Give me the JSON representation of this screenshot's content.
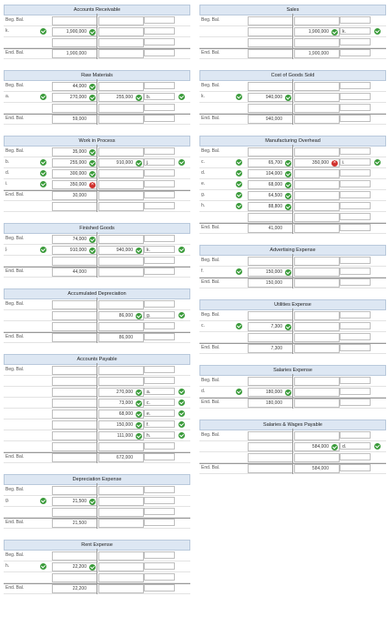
{
  "left": [
    {
      "title": "Accounts Receivable",
      "rows": [
        {
          "lbl": "Beg. Bal.",
          "dchk": false,
          "d": "",
          "c": "",
          "cl": "",
          "cchk": false
        },
        {
          "lbl": "k.",
          "dchk": true,
          "d": "1,900,000",
          "dmk": "ok",
          "c": "",
          "cl": "",
          "cchk": false
        },
        {
          "lbl": "",
          "dchk": false,
          "d": "",
          "c": "",
          "cl": "",
          "cchk": false
        },
        {
          "lbl": "End. Bal.",
          "dchk": false,
          "d": "1,900,000",
          "c": "",
          "cl": "",
          "cchk": false,
          "end": true
        }
      ]
    },
    {
      "title": "Raw Materials",
      "rows": [
        {
          "lbl": "Beg. Bal.",
          "dchk": false,
          "d": "44,000",
          "dmk": "ok",
          "c": "",
          "cl": "",
          "cchk": false
        },
        {
          "lbl": "a.",
          "dchk": true,
          "d": "270,000",
          "dmk": "ok",
          "c": "255,000",
          "cmk": "ok",
          "cl": "b.",
          "cchk": true
        },
        {
          "lbl": "",
          "dchk": false,
          "d": "",
          "c": "",
          "cl": "",
          "cchk": false
        },
        {
          "lbl": "End. Bal.",
          "dchk": false,
          "d": "59,000",
          "c": "",
          "cl": "",
          "cchk": false,
          "end": true
        }
      ]
    },
    {
      "title": "Work in Process",
      "rows": [
        {
          "lbl": "Beg. Bal.",
          "dchk": false,
          "d": "35,000",
          "dmk": "ok",
          "c": "",
          "cl": "",
          "cchk": false
        },
        {
          "lbl": "b.",
          "dchk": true,
          "d": "255,000",
          "dmk": "ok",
          "c": "910,000",
          "cmk": "ok",
          "cl": "j.",
          "cchk": true
        },
        {
          "lbl": "d.",
          "dchk": true,
          "d": "300,000",
          "dmk": "ok",
          "c": "",
          "cl": "",
          "cchk": false
        },
        {
          "lbl": "i.",
          "dchk": true,
          "d": "350,000",
          "dmk": "x",
          "c": "",
          "cl": "",
          "cchk": false
        },
        {
          "lbl": "End. Bal.",
          "dchk": false,
          "d": "30,000",
          "c": "",
          "cl": "",
          "cchk": false,
          "end": true
        },
        {
          "lbl": "",
          "dchk": false,
          "d": "",
          "c": "",
          "cl": "",
          "cchk": false
        }
      ]
    },
    {
      "title": "Finished Goods",
      "rows": [
        {
          "lbl": "Beg. Bal.",
          "dchk": false,
          "d": "74,000",
          "dmk": "ok",
          "c": "",
          "cl": "",
          "cchk": false
        },
        {
          "lbl": "j.",
          "dchk": true,
          "d": "910,000",
          "dmk": "ok",
          "c": "940,000",
          "cmk": "ok",
          "cl": "k.",
          "cchk": true
        },
        {
          "lbl": "",
          "dchk": false,
          "d": "",
          "c": "",
          "cl": "",
          "cchk": false
        },
        {
          "lbl": "End. Bal.",
          "dchk": false,
          "d": "44,000",
          "c": "",
          "cl": "",
          "cchk": false,
          "end": true
        }
      ]
    },
    {
      "title": "Accumulated Depreciation",
      "rows": [
        {
          "lbl": "Beg. Bal.",
          "dchk": false,
          "d": "",
          "c": "",
          "cl": "",
          "cchk": false
        },
        {
          "lbl": "",
          "dchk": false,
          "d": "",
          "c": "86,000",
          "cmk": "ok",
          "cl": "g.",
          "cchk": true
        },
        {
          "lbl": "",
          "dchk": false,
          "d": "",
          "c": "",
          "cl": "",
          "cchk": false
        },
        {
          "lbl": "End. Bal.",
          "dchk": false,
          "d": "",
          "c": "86,000",
          "cl": "",
          "cchk": false,
          "end": true
        }
      ]
    },
    {
      "title": "Accounts Payable",
      "rows": [
        {
          "lbl": "Beg. Bal.",
          "dchk": false,
          "d": "",
          "c": "",
          "cl": "",
          "cchk": false
        },
        {
          "lbl": "",
          "dchk": false,
          "d": "",
          "c": "",
          "cl": "",
          "cchk": false
        },
        {
          "lbl": "",
          "dchk": false,
          "d": "",
          "c": "270,000",
          "cmk": "ok",
          "cl": "a.",
          "cchk": true
        },
        {
          "lbl": "",
          "dchk": false,
          "d": "",
          "c": "73,000",
          "cmk": "ok",
          "cl": "c.",
          "cchk": true
        },
        {
          "lbl": "",
          "dchk": false,
          "d": "",
          "c": "68,000",
          "cmk": "ok",
          "cl": "e.",
          "cchk": true
        },
        {
          "lbl": "",
          "dchk": false,
          "d": "",
          "c": "150,000",
          "cmk": "ok",
          "cl": "f.",
          "cchk": true
        },
        {
          "lbl": "",
          "dchk": false,
          "d": "",
          "c": "111,000",
          "cmk": "ok",
          "cl": "h.",
          "cchk": true
        },
        {
          "lbl": "",
          "dchk": false,
          "d": "",
          "c": "",
          "cl": "",
          "cchk": false
        },
        {
          "lbl": "End. Bal.",
          "dchk": false,
          "d": "",
          "c": "672,000",
          "cl": "",
          "cchk": false,
          "end": true
        }
      ]
    },
    {
      "title": "Depreciation Expense",
      "rows": [
        {
          "lbl": "Beg. Bal.",
          "dchk": false,
          "d": "",
          "c": "",
          "cl": "",
          "cchk": false
        },
        {
          "lbl": "g.",
          "dchk": true,
          "d": "21,500",
          "dmk": "ok",
          "c": "",
          "cl": "",
          "cchk": false
        },
        {
          "lbl": "",
          "dchk": false,
          "d": "",
          "c": "",
          "cl": "",
          "cchk": false
        },
        {
          "lbl": "End. Bal.",
          "dchk": false,
          "d": "21,500",
          "c": "",
          "cl": "",
          "cchk": false,
          "end": true
        }
      ]
    },
    {
      "title": "Rent Expense",
      "rows": [
        {
          "lbl": "Beg. Bal.",
          "dchk": false,
          "d": "",
          "c": "",
          "cl": "",
          "cchk": false
        },
        {
          "lbl": "h.",
          "dchk": true,
          "d": "22,200",
          "dmk": "ok",
          "c": "",
          "cl": "",
          "cchk": false
        },
        {
          "lbl": "",
          "dchk": false,
          "d": "",
          "c": "",
          "cl": "",
          "cchk": false
        },
        {
          "lbl": "End. Bal.",
          "dchk": false,
          "d": "22,200",
          "c": "",
          "cl": "",
          "cchk": false,
          "end": true
        }
      ]
    }
  ],
  "right": [
    {
      "title": "Sales",
      "rows": [
        {
          "lbl": "Beg. Bal.",
          "dchk": false,
          "d": "",
          "c": "",
          "cl": "",
          "cchk": false
        },
        {
          "lbl": "",
          "dchk": false,
          "d": "",
          "c": "1,900,000",
          "cmk": "ok",
          "cl": "k.",
          "cchk": true
        },
        {
          "lbl": "",
          "dchk": false,
          "d": "",
          "c": "",
          "cl": "",
          "cchk": false
        },
        {
          "lbl": "End. Bal.",
          "dchk": false,
          "d": "",
          "c": "1,900,000",
          "cl": "",
          "cchk": false,
          "end": true
        }
      ]
    },
    {
      "title": "Cost of Goods Sold",
      "rows": [
        {
          "lbl": "Beg. Bal.",
          "dchk": false,
          "d": "",
          "c": "",
          "cl": "",
          "cchk": false
        },
        {
          "lbl": "k.",
          "dchk": true,
          "d": "940,000",
          "dmk": "ok",
          "c": "",
          "cl": "",
          "cchk": false
        },
        {
          "lbl": "",
          "dchk": false,
          "d": "",
          "c": "",
          "cl": "",
          "cchk": false
        },
        {
          "lbl": "End. Bal.",
          "dchk": false,
          "d": "940,000",
          "c": "",
          "cl": "",
          "cchk": false,
          "end": true
        }
      ]
    },
    {
      "title": "Manufacturing Overhead",
      "rows": [
        {
          "lbl": "Beg. Bal.",
          "dchk": false,
          "d": "",
          "c": "",
          "cl": "",
          "cchk": false
        },
        {
          "lbl": "c.",
          "dchk": true,
          "d": "65,700",
          "dmk": "ok",
          "c": "350,000",
          "cmk": "x",
          "cl": "i.",
          "cchk": true
        },
        {
          "lbl": "d.",
          "dchk": true,
          "d": "104,000",
          "dmk": "ok",
          "c": "",
          "cl": "",
          "cchk": false
        },
        {
          "lbl": "e.",
          "dchk": true,
          "d": "68,000",
          "dmk": "ok",
          "c": "",
          "cl": "",
          "cchk": false
        },
        {
          "lbl": "g.",
          "dchk": true,
          "d": "64,500",
          "dmk": "ok",
          "c": "",
          "cl": "",
          "cchk": false
        },
        {
          "lbl": "h.",
          "dchk": true,
          "d": "88,800",
          "dmk": "ok",
          "c": "",
          "cl": "",
          "cchk": false
        },
        {
          "lbl": "",
          "dchk": false,
          "d": "",
          "c": "",
          "cl": "",
          "cchk": false
        },
        {
          "lbl": "End. Bal.",
          "dchk": false,
          "d": "41,000",
          "c": "",
          "cl": "",
          "cchk": false,
          "end": true
        }
      ]
    },
    {
      "title": "Advertising Expense",
      "rows": [
        {
          "lbl": "Beg. Bal.",
          "dchk": false,
          "d": "",
          "c": "",
          "cl": "",
          "cchk": false
        },
        {
          "lbl": "f.",
          "dchk": true,
          "d": "150,000",
          "dmk": "ok",
          "c": "",
          "cl": "",
          "cchk": false
        },
        {
          "lbl": "End. Bal.",
          "dchk": false,
          "d": "150,000",
          "c": "",
          "cl": "",
          "cchk": false,
          "end": true
        }
      ]
    },
    {
      "title": "Utilities Expense",
      "rows": [
        {
          "lbl": "Beg. Bal.",
          "dchk": false,
          "d": "",
          "c": "",
          "cl": "",
          "cchk": false
        },
        {
          "lbl": "c.",
          "dchk": true,
          "d": "7,300",
          "dmk": "ok",
          "c": "",
          "cl": "",
          "cchk": false
        },
        {
          "lbl": "",
          "dchk": false,
          "d": "",
          "c": "",
          "cl": "",
          "cchk": false
        },
        {
          "lbl": "End. Bal.",
          "dchk": false,
          "d": "7,300",
          "c": "",
          "cl": "",
          "cchk": false,
          "end": true
        }
      ]
    },
    {
      "title": "Salaries Expense",
      "rows": [
        {
          "lbl": "Beg. Bal.",
          "dchk": false,
          "d": "",
          "c": "",
          "cl": "",
          "cchk": false
        },
        {
          "lbl": "d.",
          "dchk": true,
          "d": "180,000",
          "dmk": "ok",
          "c": "",
          "cl": "",
          "cchk": false
        },
        {
          "lbl": "End. Bal.",
          "dchk": false,
          "d": "180,000",
          "c": "",
          "cl": "",
          "cchk": false,
          "end": true
        }
      ]
    },
    {
      "title": "Salaries & Wages Payable",
      "rows": [
        {
          "lbl": "Beg. Bal.",
          "dchk": false,
          "d": "",
          "c": "",
          "cl": "",
          "cchk": false
        },
        {
          "lbl": "",
          "dchk": false,
          "d": "",
          "c": "584,000",
          "cmk": "ok",
          "cl": "d.",
          "cchk": true
        },
        {
          "lbl": "",
          "dchk": false,
          "d": "",
          "c": "",
          "cl": "",
          "cchk": false
        },
        {
          "lbl": "End. Bal.",
          "dchk": false,
          "d": "",
          "c": "584,000",
          "cl": "",
          "cchk": false,
          "end": true
        }
      ]
    }
  ]
}
